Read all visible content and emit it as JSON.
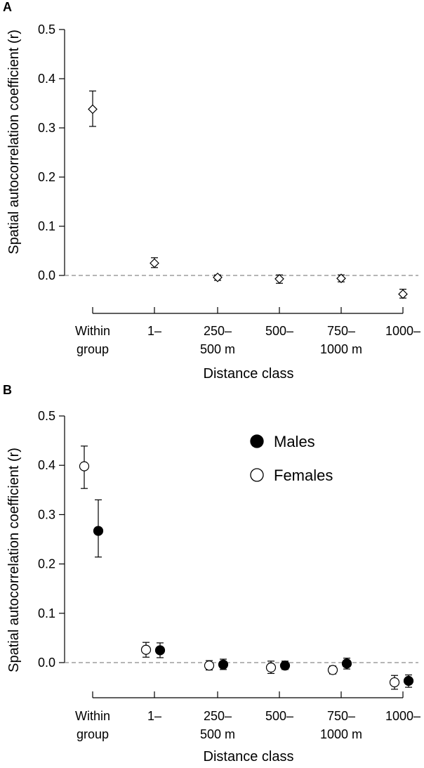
{
  "chart_data": [
    {
      "type": "scatter",
      "panel": "A",
      "title": "",
      "xlabel": "Distance class",
      "ylabel": "Spatial autocorrelation coefficient (r)",
      "ylim": [
        -0.05,
        0.5
      ],
      "yticks": [
        "0.0",
        "0.1",
        "0.2",
        "0.3",
        "0.4",
        "0.5"
      ],
      "categories": [
        [
          "Within",
          "group"
        ],
        [
          "1–",
          ""
        ],
        [
          "250–",
          "500 m"
        ],
        [
          "500–",
          ""
        ],
        [
          "750–",
          "1000 m"
        ],
        [
          "1000–",
          ""
        ]
      ],
      "reference_line": 0.0,
      "legend": null,
      "series": [
        {
          "marker": "diamond-open",
          "values": [
            0.338,
            0.025,
            -0.004,
            -0.007,
            -0.006,
            -0.038
          ],
          "err_low": [
            0.303,
            0.016,
            -0.01,
            -0.016,
            -0.013,
            -0.046
          ],
          "err_high": [
            0.375,
            0.036,
            0.001,
            0.001,
            0.001,
            -0.028
          ]
        }
      ]
    },
    {
      "type": "scatter",
      "panel": "B",
      "title": "",
      "xlabel": "Distance class",
      "ylabel": "Spatial autocorrelation coefficient (r)",
      "ylim": [
        -0.07,
        0.5
      ],
      "yticks": [
        "0.0",
        "0.1",
        "0.2",
        "0.3",
        "0.4",
        "0.5"
      ],
      "categories": [
        [
          "Within",
          "group"
        ],
        [
          "1–",
          ""
        ],
        [
          "250–",
          "500 m"
        ],
        [
          "500–",
          ""
        ],
        [
          "750–",
          "1000 m"
        ],
        [
          "1000–",
          ""
        ]
      ],
      "reference_line": 0.0,
      "legend": {
        "placement": "top-right"
      },
      "series": [
        {
          "name": "Males",
          "marker": "circle-filled",
          "values": [
            0.267,
            0.025,
            -0.004,
            -0.006,
            -0.002,
            -0.037
          ],
          "err_low": [
            0.214,
            0.01,
            -0.014,
            -0.014,
            -0.013,
            -0.05
          ],
          "err_high": [
            0.33,
            0.04,
            0.007,
            0.003,
            0.009,
            -0.025
          ]
        },
        {
          "name": "Females",
          "marker": "circle-open",
          "values": [
            0.398,
            0.026,
            -0.006,
            -0.01,
            -0.015,
            -0.04
          ],
          "err_low": [
            0.353,
            0.011,
            -0.015,
            -0.022,
            -0.023,
            -0.054
          ],
          "err_high": [
            0.439,
            0.041,
            0.004,
            0.003,
            -0.007,
            -0.026
          ]
        }
      ]
    }
  ]
}
